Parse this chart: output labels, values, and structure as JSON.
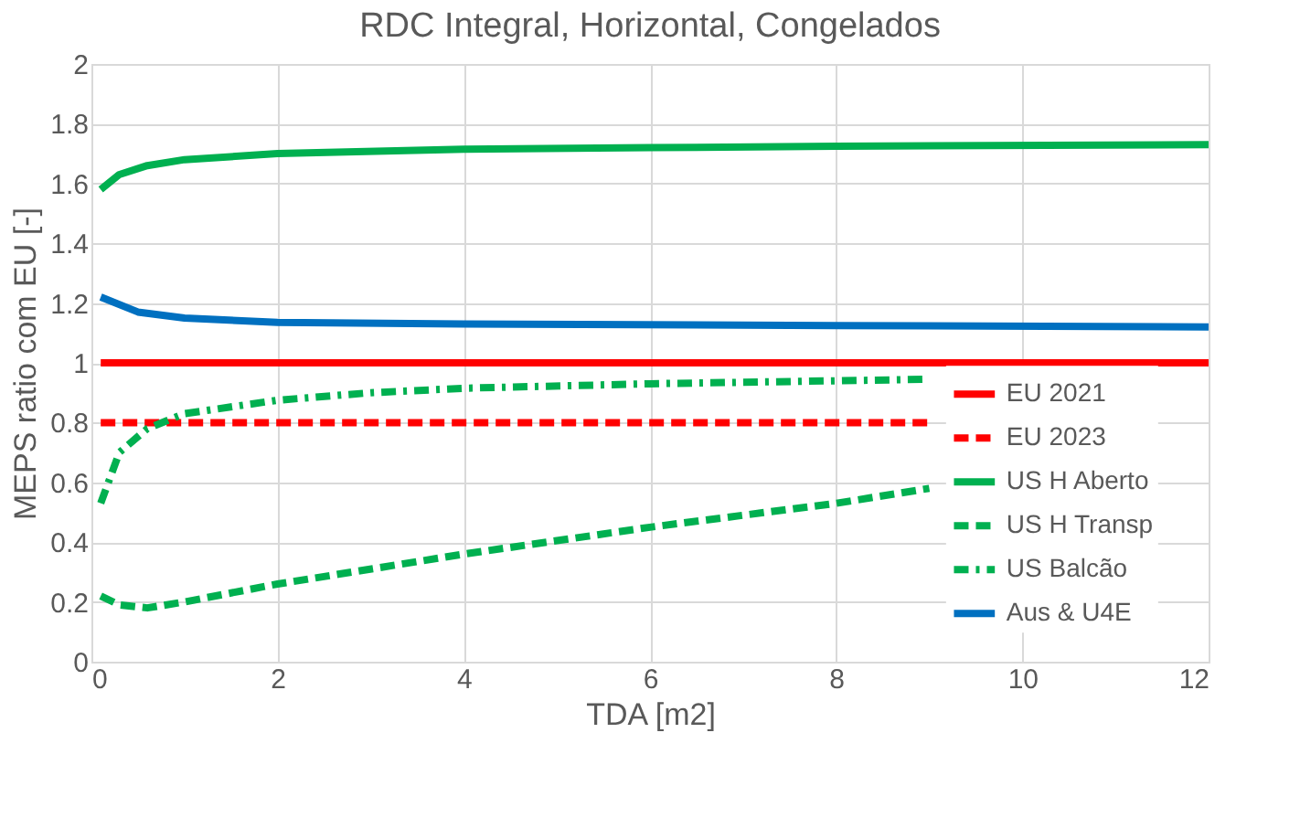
{
  "chart_data": {
    "type": "line",
    "title": "RDC Integral, Horizontal, Congelados",
    "xlabel": "TDA [m2]",
    "ylabel": "MEPS ratio com EU [-]",
    "xlim": [
      0,
      12
    ],
    "xticks": [
      0,
      2,
      4,
      6,
      8,
      10,
      12
    ],
    "ylim": [
      0,
      2
    ],
    "yticks": [
      0,
      0.2,
      0.4,
      0.6,
      0.8,
      1,
      1.2,
      1.4,
      1.6,
      1.8,
      2
    ],
    "grid": true,
    "legend": "right",
    "marker": "none",
    "series": [
      {
        "name": "EU 2021",
        "color": "#ff0000",
        "line_style": "solid",
        "x": [
          0.1,
          12
        ],
        "values": [
          1,
          1
        ]
      },
      {
        "name": "EU 2023",
        "color": "#ff0000",
        "line_style": "dashed",
        "x": [
          0.1,
          9
        ],
        "values": [
          0.8,
          0.8
        ]
      },
      {
        "name": "US H Aberto",
        "color": "#00b050",
        "line_style": "solid",
        "x": [
          0.1,
          0.3,
          0.6,
          1,
          2,
          4,
          6,
          8,
          12
        ],
        "values": [
          1.58,
          1.63,
          1.66,
          1.68,
          1.7,
          1.715,
          1.72,
          1.725,
          1.73
        ]
      },
      {
        "name": "US H Transp",
        "color": "#00b050",
        "line_style": "dashed",
        "x": [
          0.1,
          0.3,
          0.6,
          1,
          2,
          4,
          6,
          8,
          9
        ],
        "values": [
          0.22,
          0.19,
          0.18,
          0.2,
          0.26,
          0.36,
          0.45,
          0.53,
          0.58
        ]
      },
      {
        "name": "US Balcão",
        "color": "#00b050",
        "line_style": "dashdot",
        "x": [
          0.1,
          0.3,
          0.6,
          1,
          2,
          3,
          4,
          6,
          8,
          9
        ],
        "values": [
          0.53,
          0.7,
          0.78,
          0.83,
          0.875,
          0.9,
          0.915,
          0.93,
          0.94,
          0.945
        ]
      },
      {
        "name": "Aus & U4E",
        "color": "#0070c0",
        "line_style": "solid",
        "x": [
          0.1,
          0.5,
          1,
          2,
          4,
          8,
          12
        ],
        "values": [
          1.22,
          1.17,
          1.15,
          1.135,
          1.13,
          1.125,
          1.12
        ]
      }
    ]
  }
}
